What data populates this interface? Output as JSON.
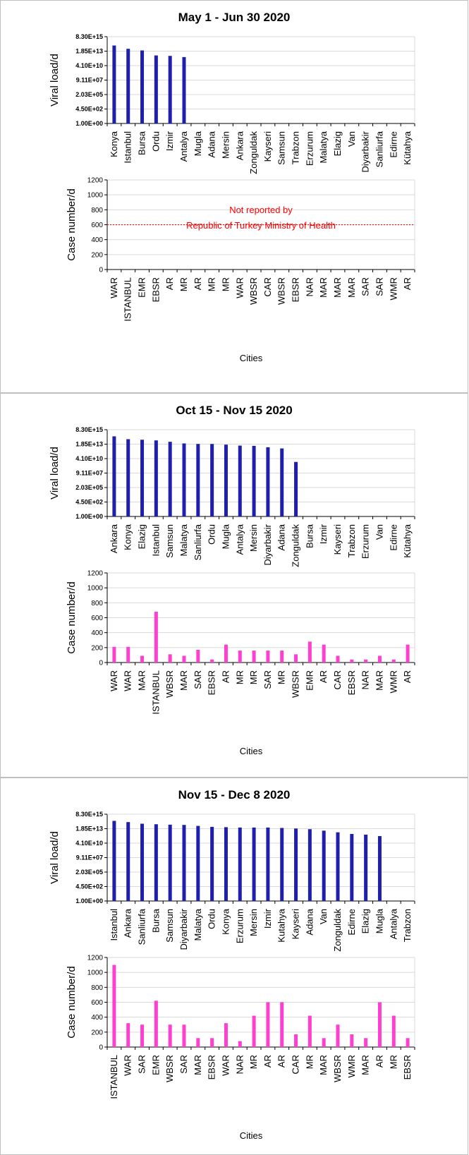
{
  "colors": {
    "viral": "#1f1fae",
    "cases": "#ff3fd0",
    "grid": "#d9d9d9",
    "note": "#ff0000"
  },
  "chart_data": [
    {
      "title": "May 1 - Jun 30 2020",
      "xlabel": "Cities",
      "viral": {
        "type": "bar",
        "ylabel": "Viral load/d",
        "log_scale": true,
        "yticks": [
          "1.00E+00",
          "4.50E+02",
          "2.03E+05",
          "9.11E+07",
          "4.10E+10",
          "1.85E+13",
          "8.30E+15"
        ],
        "categories": [
          "Konya",
          "Istanbul",
          "Bursa",
          "Ordu",
          "Izmir",
          "Antalya",
          "Mugla",
          "Adana",
          "Mersin",
          "Ankara",
          "Zonguldak",
          "Kayseri",
          "Samsun",
          "Trabzon",
          "Erzurum",
          "Malatya",
          "Elazig",
          "Van",
          "Diyarbakir",
          "Sanliurfa",
          "Edirne",
          "Kütahya"
        ],
        "values": [
          200000000000000.0,
          50000000000000.0,
          25000000000000.0,
          3000000000000.0,
          2500000000000.0,
          1500000000000.0,
          null,
          null,
          null,
          null,
          null,
          null,
          null,
          null,
          null,
          null,
          null,
          null,
          null,
          null,
          null,
          null
        ]
      },
      "cases": {
        "type": "bar",
        "ylabel": "Case number/d",
        "yticks": [
          0,
          200,
          400,
          600,
          800,
          1000,
          1200
        ],
        "ylim": [
          0,
          1200
        ],
        "categories": [
          "WAR",
          "ISTANBUL",
          "EMR",
          "EBSR",
          "AR",
          "MR",
          "AR",
          "MR",
          "MR",
          "WAR",
          "WBSR",
          "CAR",
          "WBSR",
          "EBSR",
          "NAR",
          "MAR",
          "MAR",
          "MAR",
          "SAR",
          "SAR",
          "WMR",
          "AR"
        ],
        "values": [],
        "reference_line": 600,
        "note_line1": "Not reported by",
        "note_line2": "Republic of Turkey Ministry of Health"
      }
    },
    {
      "title": "Oct 15 - Nov 15 2020",
      "xlabel": "Cities",
      "viral": {
        "type": "bar",
        "ylabel": "Viral load/d",
        "log_scale": true,
        "yticks": [
          "1.00E+00",
          "4.50E+02",
          "2.03E+05",
          "9.11E+07",
          "4.10E+10",
          "1.85E+13",
          "8.30E+15"
        ],
        "categories": [
          "Ankara",
          "Konya",
          "Elazig",
          "Istanbul",
          "Samsun",
          "Malatya",
          "Sanliurfa",
          "Ordu",
          "Mugla",
          "Antalya",
          "Mersin",
          "Diyarbakir",
          "Adana",
          "Zonguldak",
          "Bursa",
          "Izmir",
          "Kayseri",
          "Trabzon",
          "Erzurum",
          "Van",
          "Edirne",
          "Kütahya"
        ],
        "values": [
          500000000000000.0,
          150000000000000.0,
          120000000000000.0,
          90000000000000.0,
          50000000000000.0,
          25000000000000.0,
          20000000000000.0,
          20000000000000.0,
          15000000000000.0,
          10000000000000.0,
          9000000000000.0,
          5000000000000.0,
          3000000000000.0,
          10000000000.0,
          null,
          null,
          null,
          null,
          null,
          null,
          null,
          null
        ]
      },
      "cases": {
        "type": "bar",
        "ylabel": "Case number/d",
        "yticks": [
          0,
          200,
          400,
          600,
          800,
          1000,
          1200
        ],
        "ylim": [
          0,
          1200
        ],
        "categories": [
          "WAR",
          "WAR",
          "MAR",
          "ISTANBUL",
          "WBSR",
          "MAR",
          "SAR",
          "EBSR",
          "AR",
          "MR",
          "MR",
          "SAR",
          "MR",
          "WBSR",
          "EMR",
          "AR",
          "CAR",
          "EBSR",
          "NAR",
          "MAR",
          "WMR",
          "AR"
        ],
        "values": [
          210,
          210,
          90,
          680,
          110,
          90,
          170,
          40,
          240,
          160,
          160,
          160,
          160,
          110,
          280,
          240,
          90,
          40,
          40,
          90,
          40,
          240
        ]
      }
    },
    {
      "title": "Nov 15 - Dec 8 2020",
      "xlabel": "Cities",
      "viral": {
        "type": "bar",
        "ylabel": "Viral load/d",
        "log_scale": true,
        "yticks": [
          "1.00E+00",
          "4.50E+02",
          "2.03E+05",
          "9.11E+07",
          "4.10E+10",
          "1.85E+13",
          "8.30E+15"
        ],
        "categories": [
          "Istanbul",
          "Ankara",
          "Sanliurfa",
          "Bursa",
          "Samsun",
          "Diyarbakir",
          "Malatya",
          "Ordu",
          "Konya",
          "Erzurum",
          "Mersin",
          "Izmir",
          "Kutahya",
          "Kayseri",
          "Adana",
          "Van",
          "Zonguldak",
          "Edirne",
          "Elazig",
          "Mugla",
          "Antalya",
          "Trabzon"
        ],
        "values": [
          500000000000000.0,
          300000000000000.0,
          150000000000000.0,
          120000000000000.0,
          100000000000000.0,
          90000000000000.0,
          60000000000000.0,
          40000000000000.0,
          35000000000000.0,
          30000000000000.0,
          30000000000000.0,
          30000000000000.0,
          25000000000000.0,
          20000000000000.0,
          15000000000000.0,
          8000000000000.0,
          4000000000000.0,
          2000000000000.0,
          1500000000000.0,
          800000000000.0,
          null,
          null
        ]
      },
      "cases": {
        "type": "bar",
        "ylabel": "Case number/d",
        "yticks": [
          0,
          200,
          400,
          600,
          800,
          1000,
          1200
        ],
        "ylim": [
          0,
          1200
        ],
        "categories": [
          "ISTANBUL",
          "WAR",
          "SAR",
          "EMR",
          "WBSR",
          "SAR",
          "MAR",
          "EBSR",
          "WAR",
          "NAR",
          "MR",
          "AR",
          "AR",
          "CAR",
          "MR",
          "MAR",
          "WBSR",
          "WMR",
          "MAR",
          "AR",
          "MR",
          "EBSR"
        ],
        "values": [
          1100,
          320,
          300,
          620,
          300,
          300,
          120,
          120,
          320,
          80,
          420,
          600,
          600,
          170,
          420,
          120,
          300,
          170,
          120,
          600,
          420,
          120
        ]
      }
    }
  ]
}
